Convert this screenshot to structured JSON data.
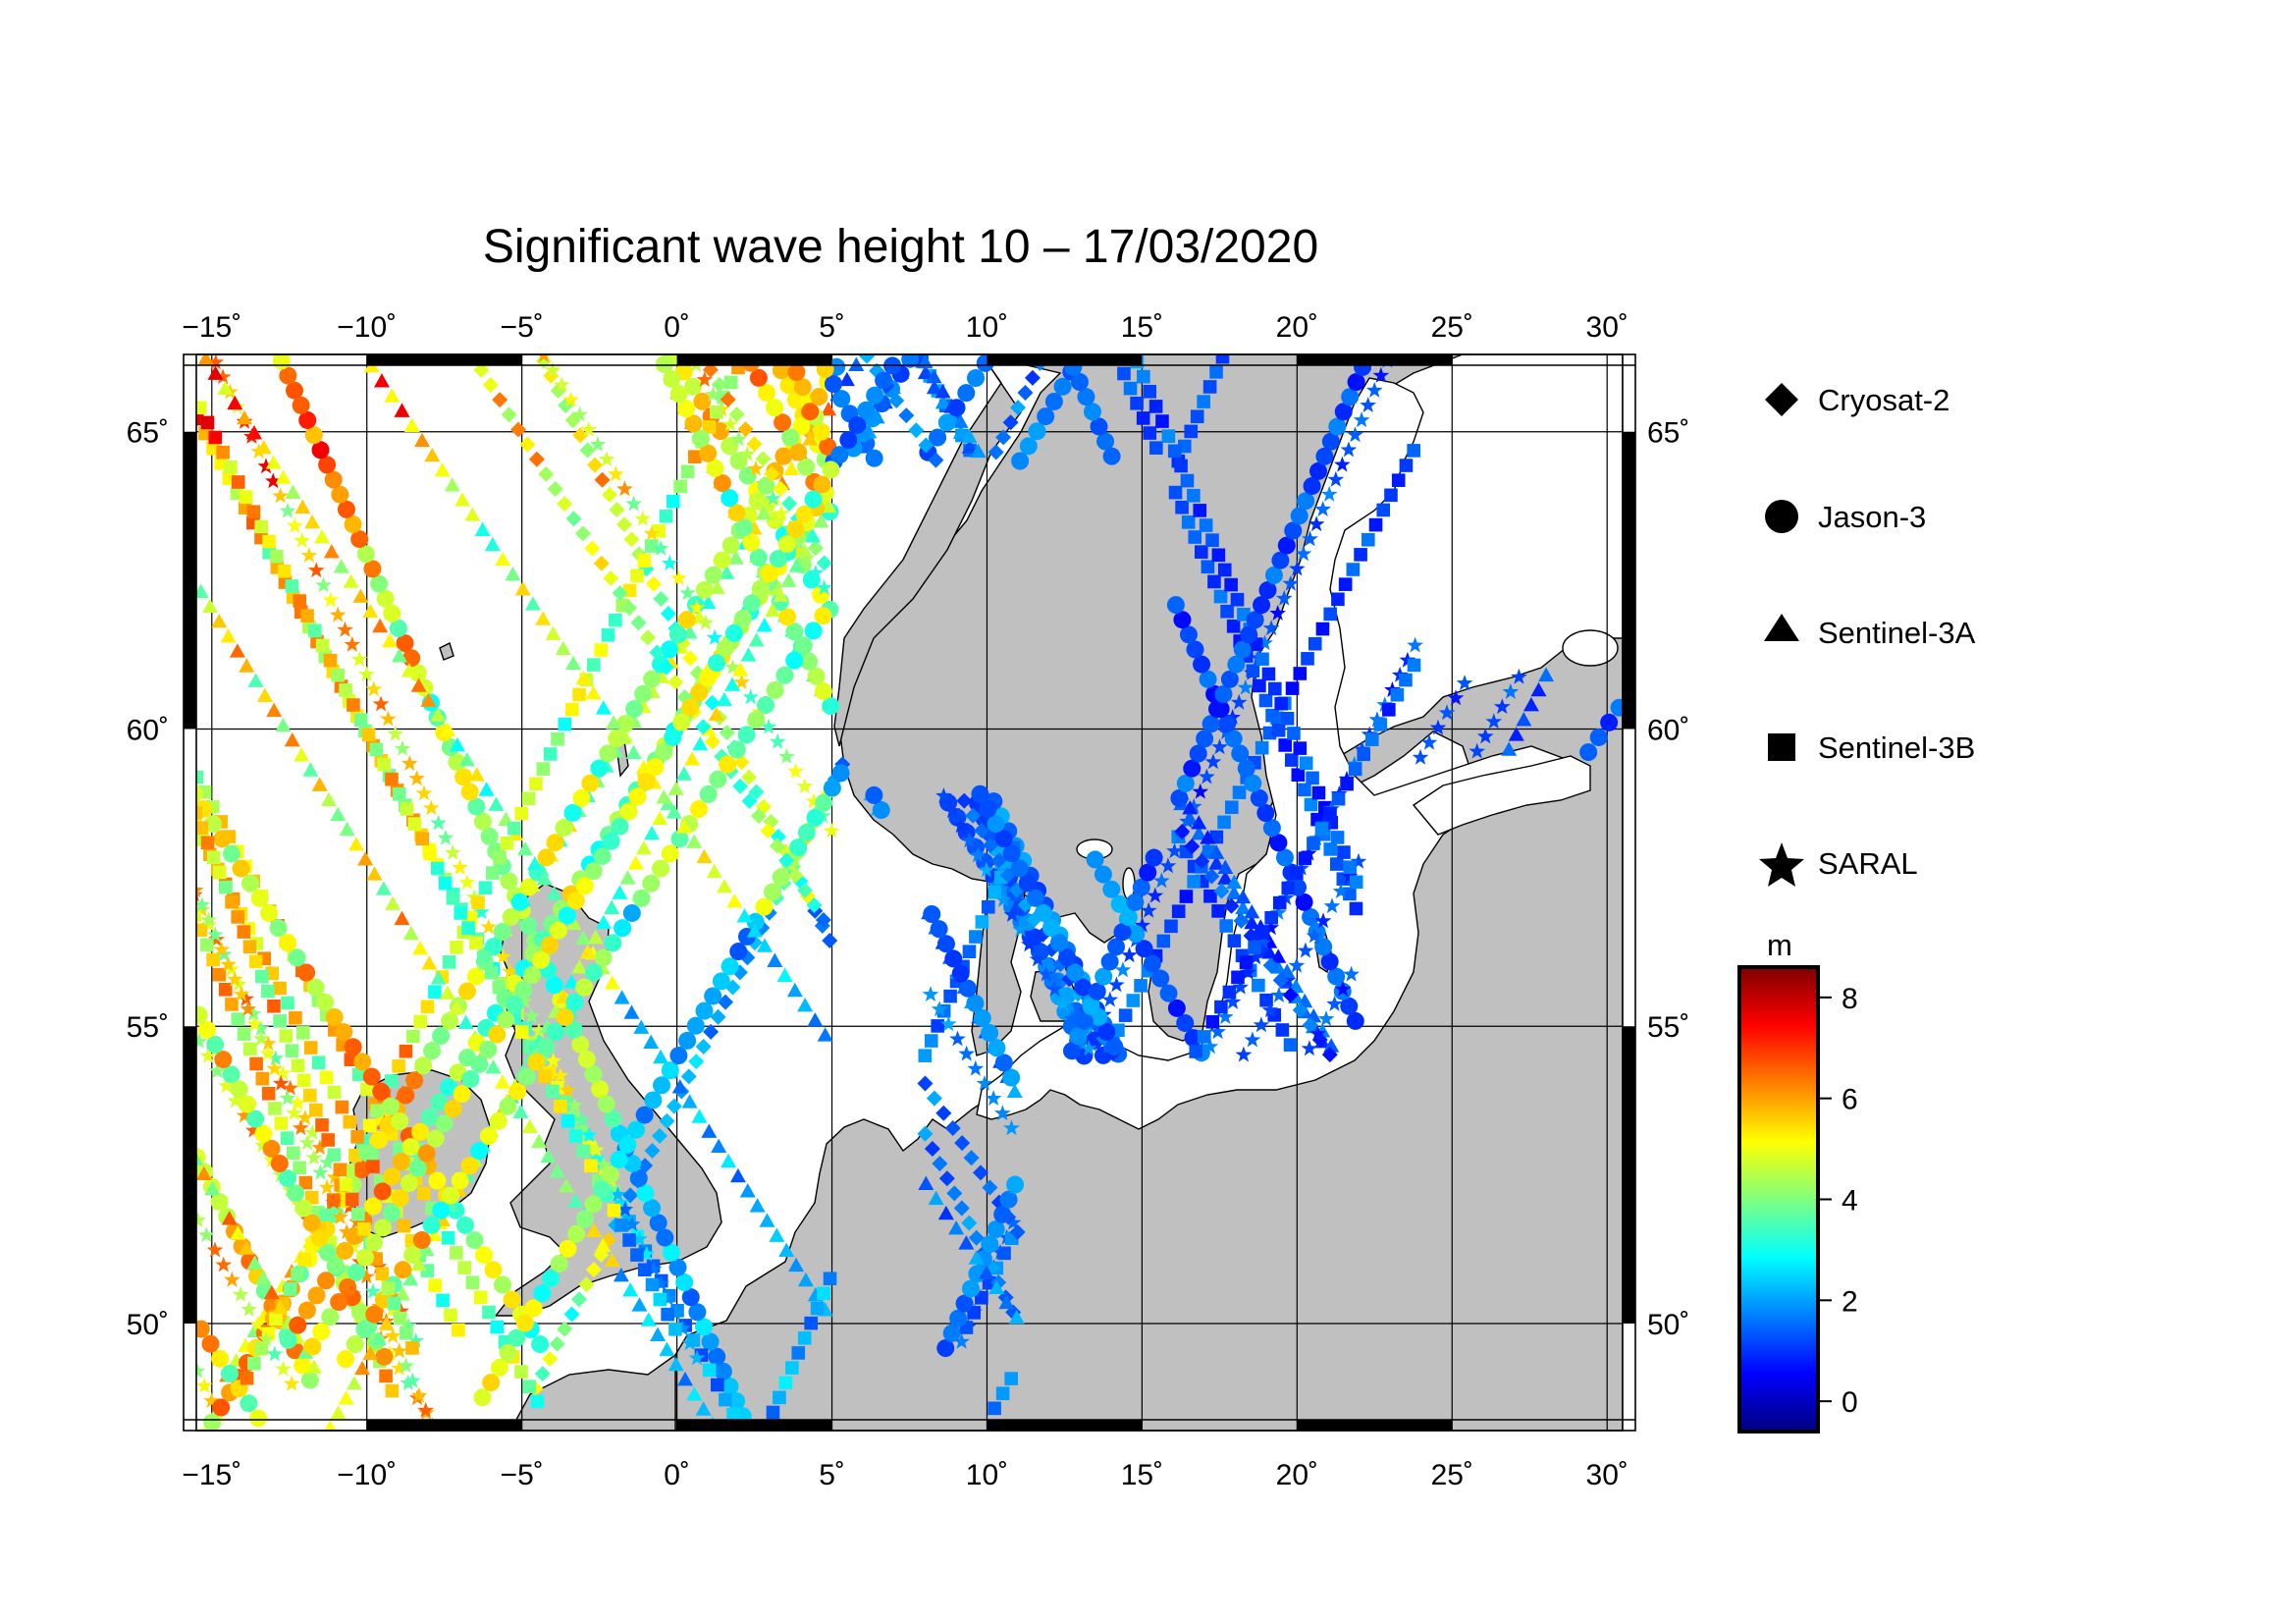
{
  "title": "Significant wave height 10 – 17/03/2020",
  "map": {
    "lon_range": [
      -15.5,
      30.5
    ],
    "lat_range": [
      48.2,
      66.3
    ],
    "lon_ticks": [
      -15,
      -10,
      -5,
      0,
      5,
      10,
      15,
      20,
      25,
      30
    ],
    "lat_ticks": [
      50,
      55,
      60,
      65
    ],
    "lon_tick_labels": [
      "−15˚",
      "−10˚",
      "−5˚",
      "0˚",
      "5˚",
      "10˚",
      "15˚",
      "20˚",
      "25˚",
      "30˚"
    ],
    "lat_tick_labels": [
      "50˚",
      "55˚",
      "60˚",
      "65˚"
    ],
    "land_color": "#c0c0c0",
    "sea_color": "#ffffff",
    "grid": true
  },
  "legend": {
    "items": [
      {
        "label": "Cryosat-2",
        "symbol": "diamond"
      },
      {
        "label": "Jason-3",
        "symbol": "circle"
      },
      {
        "label": "Sentinel-3A",
        "symbol": "triangle"
      },
      {
        "label": "Sentinel-3B",
        "symbol": "square"
      },
      {
        "label": "SARAL",
        "symbol": "star"
      }
    ]
  },
  "colorbar": {
    "unit": "m",
    "min": -0.6,
    "max": 8.6,
    "ticks": [
      0,
      2,
      4,
      6,
      8
    ],
    "tick_labels": [
      "0",
      "2",
      "4",
      "6",
      "8"
    ],
    "colormap": "jet"
  }
}
